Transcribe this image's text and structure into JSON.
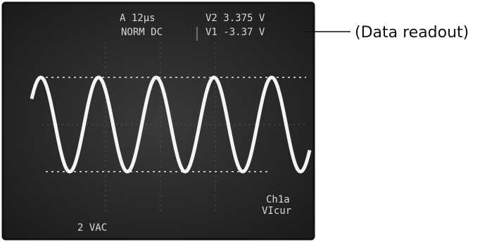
{
  "screen": {
    "timebase": "A 12µs",
    "trigger": "NORM DC",
    "readout_v2": "V2 3.375 V",
    "readout_v1": "V1 -3.37 V",
    "channel_top": "Ch1a",
    "channel_bottom": "VIcur",
    "scale": "2 VAC"
  },
  "annotation": "(Data readout)"
}
